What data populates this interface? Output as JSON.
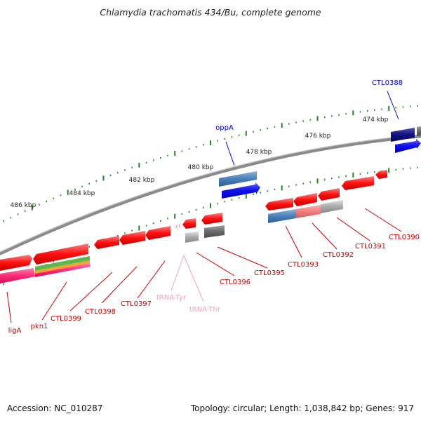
{
  "title": "Chlamydia trachomatis 434/Bu, complete genome",
  "footer": {
    "accession": "Accession: NC_010287",
    "summary": "Topology: circular; Length: 1,038,842 bp; Genes: 917"
  },
  "colors": {
    "backbone": "#8a8a8a",
    "tick": "#1e8a1e",
    "cds": "#ff1a1a",
    "steelblue": "#4a7fb8",
    "blue": "#1010ee",
    "navy": "#101080",
    "gray": "#a9a9a9",
    "darkgray": "#6a6a6a",
    "pink": "#ff4488",
    "salmon": "#f08080",
    "trna": "#f5a0c0",
    "label_red": "#cc0000",
    "label_blue": "#0000cc"
  },
  "scale_labels": [
    "486 kbp",
    "484 kbp",
    "482 kbp",
    "480 kbp",
    "478 kbp",
    "476 kbp",
    "474 kbp"
  ],
  "gene_labels": [
    {
      "text": "ligA",
      "color": "label_red"
    },
    {
      "text": "pkn1",
      "color": "label_red"
    },
    {
      "text": "CTL0399",
      "color": "label_red"
    },
    {
      "text": "CTL0398",
      "color": "label_red"
    },
    {
      "text": "CTL0397",
      "color": "label_red"
    },
    {
      "text": "tRNA-Tyr",
      "color": "trna"
    },
    {
      "text": "tRNA-Thr",
      "color": "trna"
    },
    {
      "text": "CTL0396",
      "color": "label_red"
    },
    {
      "text": "CTL0395",
      "color": "label_red"
    },
    {
      "text": "CTL0393",
      "color": "label_red"
    },
    {
      "text": "CTL0392",
      "color": "label_red"
    },
    {
      "text": "CTL0391",
      "color": "label_red"
    },
    {
      "text": "CTL0390",
      "color": "label_red"
    },
    {
      "text": "oppA",
      "color": "label_blue"
    },
    {
      "text": "CTL0388",
      "color": "label_blue"
    }
  ]
}
